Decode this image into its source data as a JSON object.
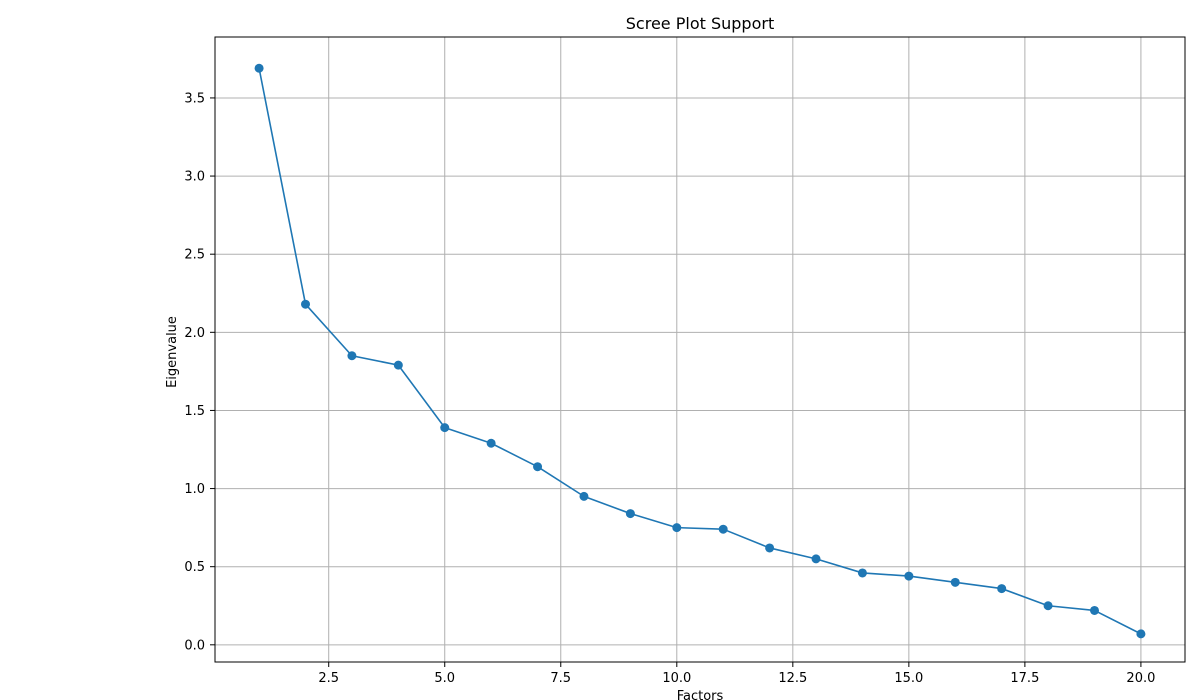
{
  "chart_data": {
    "type": "line",
    "title": "Scree Plot Support",
    "xlabel": "Factors",
    "ylabel": "Eigenvalue",
    "x": [
      1,
      2,
      3,
      4,
      5,
      6,
      7,
      8,
      9,
      10,
      11,
      12,
      13,
      14,
      15,
      16,
      17,
      18,
      19,
      20
    ],
    "series": [
      {
        "values": [
          3.69,
          2.18,
          1.85,
          1.79,
          1.39,
          1.29,
          1.14,
          0.95,
          0.84,
          0.75,
          0.74,
          0.62,
          0.55,
          0.46,
          0.44,
          0.4,
          0.36,
          0.25,
          0.22,
          0.07
        ]
      }
    ],
    "xlim": [
      0.05,
      20.95
    ],
    "ylim": [
      -0.11,
      3.89
    ],
    "x_ticks": [
      2.5,
      5.0,
      7.5,
      10.0,
      12.5,
      15.0,
      17.5,
      20.0
    ],
    "x_tick_labels": [
      "2.5",
      "5.0",
      "7.5",
      "10.0",
      "12.5",
      "15.0",
      "17.5",
      "20.0"
    ],
    "y_ticks": [
      0.0,
      0.5,
      1.0,
      1.5,
      2.0,
      2.5,
      3.0,
      3.5
    ],
    "y_tick_labels": [
      "0.0",
      "0.5",
      "1.0",
      "1.5",
      "2.0",
      "2.5",
      "3.0",
      "3.5"
    ],
    "grid": true,
    "legend": "none",
    "line_color": "#1f77b4",
    "grid_color": "#b0b0b0",
    "axis_color": "#000000"
  }
}
